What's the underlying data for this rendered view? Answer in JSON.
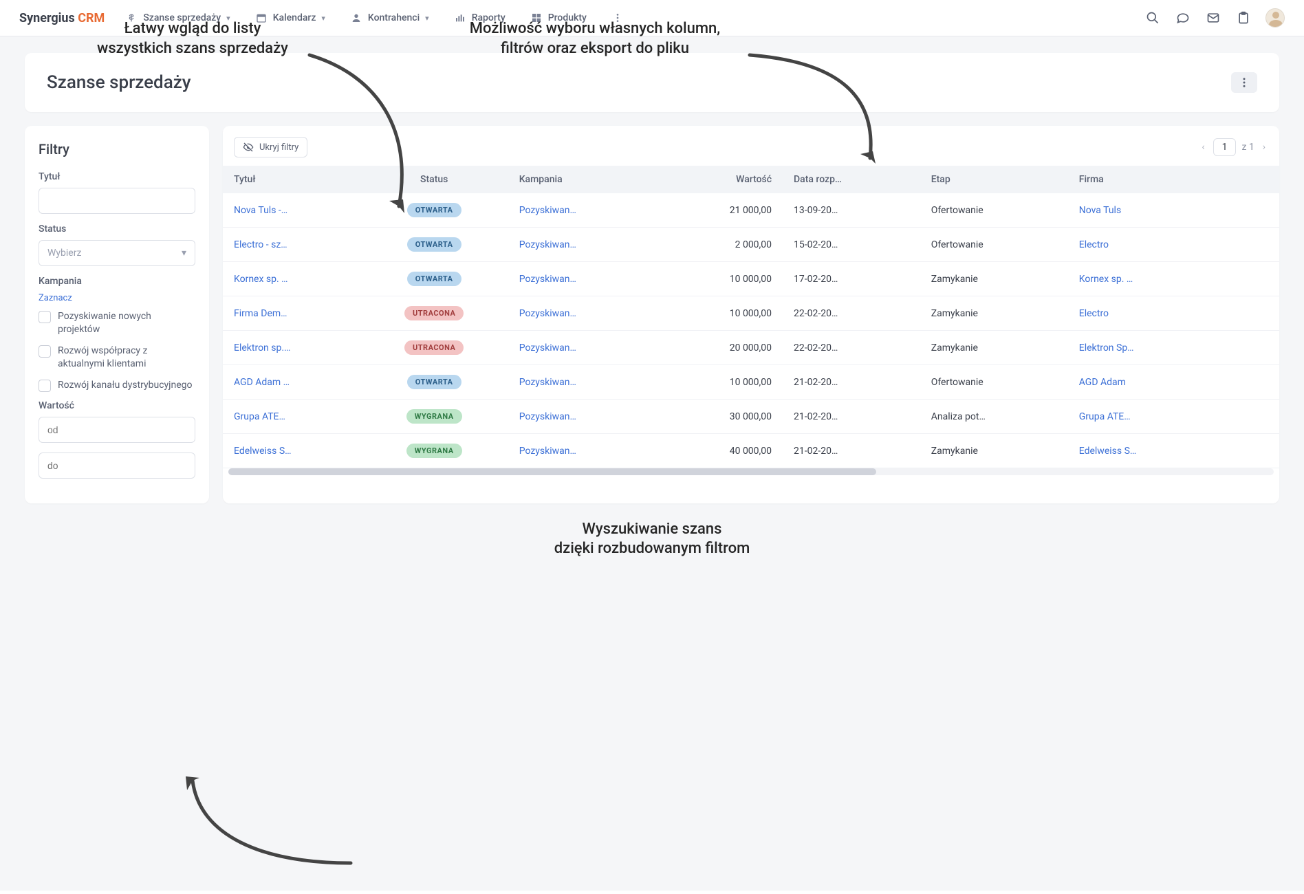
{
  "annotations": {
    "top_left": "Łatwy wgląd do listy\nwszystkich szans sprzedaży",
    "top_right": "Możliwość wyboru własnych kolumn,\nfiltrów oraz eksport do pliku",
    "bottom": "Wyszukiwanie szans\ndzięki rozbudowanym filtrom"
  },
  "brand": {
    "part1": "Synergius",
    "part2": "CRM"
  },
  "nav": {
    "szanse": "Szanse sprzedaży",
    "kalendarz": "Kalendarz",
    "kontrahenci": "Kontrahenci",
    "raporty": "Raporty",
    "produkty": "Produkty"
  },
  "page": {
    "title": "Szanse sprzedaży",
    "hide_filters": "Ukryj filtry",
    "page_num": "1",
    "page_of": "z 1"
  },
  "filters": {
    "title": "Filtry",
    "tytul_label": "Tytuł",
    "status_label": "Status",
    "status_placeholder": "Wybierz",
    "kampania_label": "Kampania",
    "zaznacz": "Zaznacz",
    "camp1": "Pozyskiwanie nowych projektów",
    "camp2": "Rozwój współpracy z aktualnymi klientami",
    "camp3": "Rozwój kanału dystrybucyjnego",
    "wartosc_label": "Wartość",
    "od_placeholder": "od",
    "do_placeholder": "do"
  },
  "columns": {
    "tytul": "Tytuł",
    "status": "Status",
    "kampania": "Kampania",
    "wartosc": "Wartość",
    "data": "Data rozp…",
    "etap": "Etap",
    "firma": "Firma"
  },
  "status_styles": {
    "OTWARTA": {
      "bg": "#b9d7ef",
      "fg": "#2c5f8a"
    },
    "UTRACONA": {
      "bg": "#f3c3c3",
      "fg": "#a13d3d"
    },
    "WYGRANA": {
      "bg": "#bde5c8",
      "fg": "#2f7a45"
    }
  },
  "rows": [
    {
      "tytul": "Nova Tuls -…",
      "status": "OTWARTA",
      "kampania": "Pozyskiwan…",
      "wartosc": "21 000,00",
      "data": "13-09-20…",
      "etap": "Ofertowanie",
      "firma": "Nova Tuls"
    },
    {
      "tytul": "Electro - sz…",
      "status": "OTWARTA",
      "kampania": "Pozyskiwan…",
      "wartosc": "2 000,00",
      "data": "15-02-20…",
      "etap": "Ofertowanie",
      "firma": "Electro"
    },
    {
      "tytul": "Kornex sp. …",
      "status": "OTWARTA",
      "kampania": "Pozyskiwan…",
      "wartosc": "10 000,00",
      "data": "17-02-20…",
      "etap": "Zamykanie",
      "firma": "Kornex sp. …"
    },
    {
      "tytul": "Firma Dem…",
      "status": "UTRACONA",
      "kampania": "Pozyskiwan…",
      "wartosc": "10 000,00",
      "data": "22-02-20…",
      "etap": "Zamykanie",
      "firma": "Electro"
    },
    {
      "tytul": "Elektron sp.…",
      "status": "UTRACONA",
      "kampania": "Pozyskiwan…",
      "wartosc": "20 000,00",
      "data": "22-02-20…",
      "etap": "Zamykanie",
      "firma": "Elektron Sp…"
    },
    {
      "tytul": "AGD Adam …",
      "status": "OTWARTA",
      "kampania": "Pozyskiwan…",
      "wartosc": "10 000,00",
      "data": "21-02-20…",
      "etap": "Ofertowanie",
      "firma": "AGD Adam"
    },
    {
      "tytul": "Grupa ATE…",
      "status": "WYGRANA",
      "kampania": "Pozyskiwan…",
      "wartosc": "30 000,00",
      "data": "21-02-20…",
      "etap": "Analiza pot…",
      "firma": "Grupa ATE…"
    },
    {
      "tytul": "Edelweiss S…",
      "status": "WYGRANA",
      "kampania": "Pozyskiwan…",
      "wartosc": "40 000,00",
      "data": "21-02-20…",
      "etap": "Zamykanie",
      "firma": "Edelweiss S…"
    }
  ],
  "colors": {
    "page_bg": "#f5f6f8",
    "border": "#dde0e7",
    "link": "#3b6fd6",
    "text": "#3a3f4a",
    "muted": "#8a90a0",
    "accent": "#e86a33",
    "annotation": "#444444"
  }
}
